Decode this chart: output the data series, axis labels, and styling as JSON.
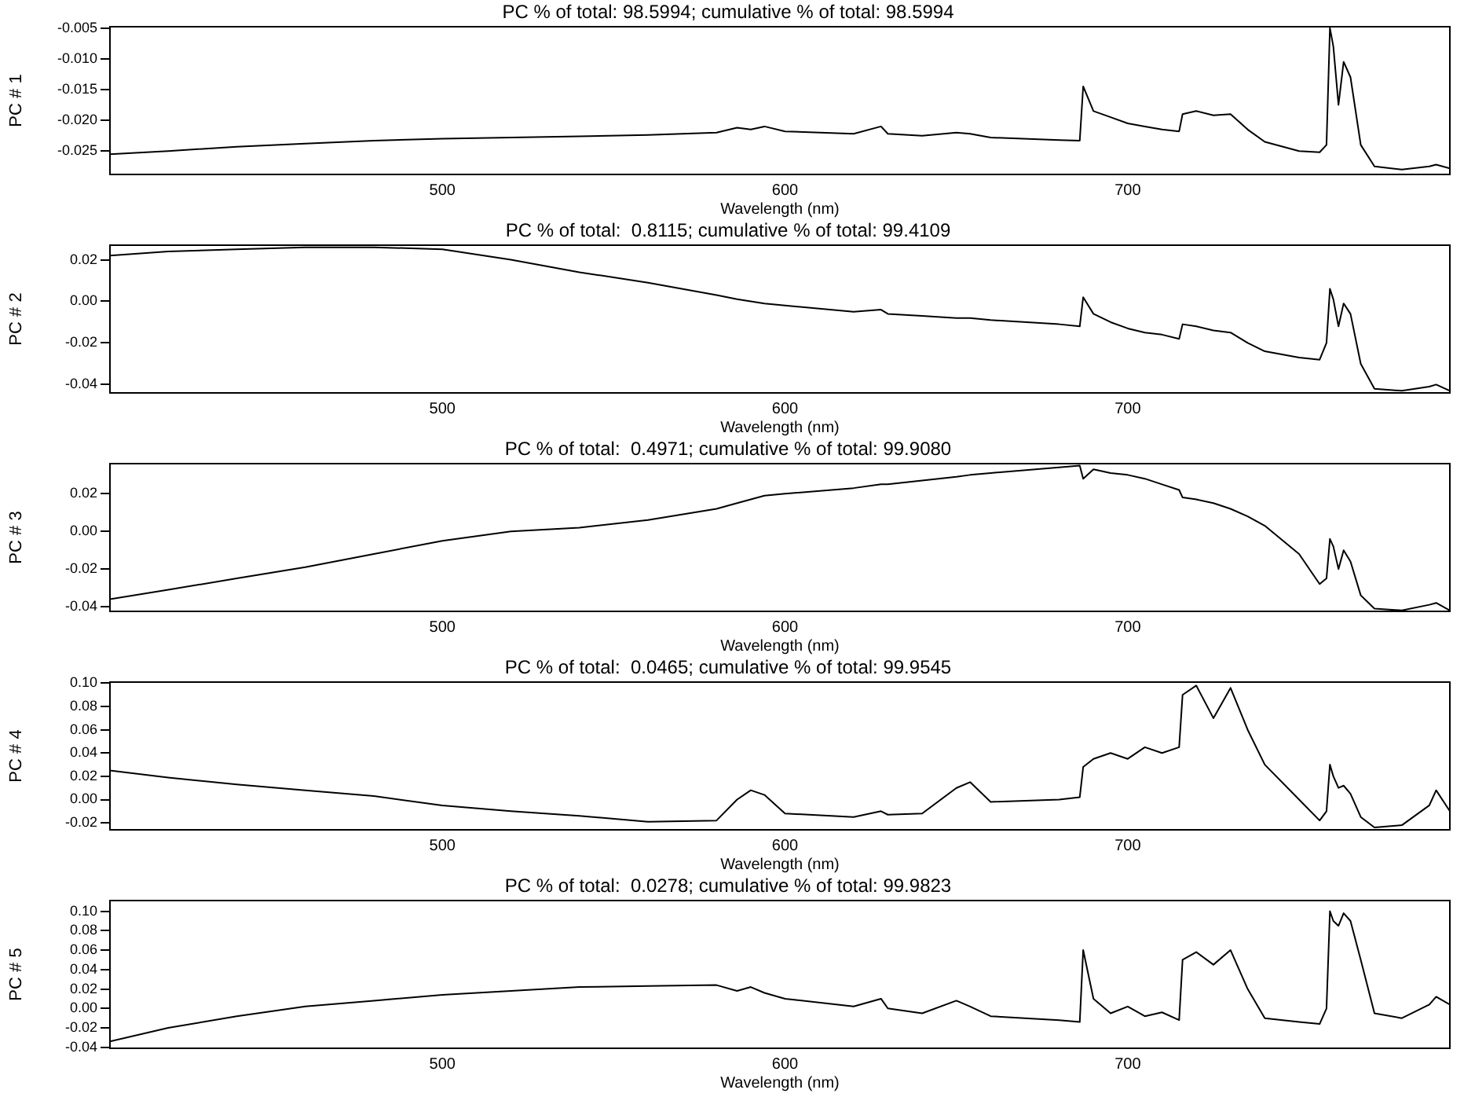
{
  "chart_data": [
    {
      "type": "line",
      "title": "PC % of total: 98.5994; cumulative % of total: 98.5994",
      "xlabel": "Wavelength (nm)",
      "ylabel": "PC # 1",
      "color": "#000000",
      "x": [
        403,
        420,
        440,
        460,
        480,
        500,
        520,
        540,
        560,
        580,
        586,
        590,
        594,
        600,
        620,
        628,
        630,
        640,
        650,
        654,
        660,
        680,
        686,
        687,
        690,
        695,
        700,
        705,
        710,
        715,
        716,
        720,
        725,
        730,
        735,
        740,
        750,
        756,
        758,
        759,
        760,
        761.5,
        763,
        765,
        768,
        772,
        780,
        788,
        790,
        794
      ],
      "values": [
        -0.0255,
        -0.025,
        -0.0243,
        -0.0238,
        -0.0233,
        -0.023,
        -0.0228,
        -0.0226,
        -0.0224,
        -0.022,
        -0.0212,
        -0.0215,
        -0.021,
        -0.0218,
        -0.0222,
        -0.021,
        -0.0222,
        -0.0225,
        -0.022,
        -0.0222,
        -0.0228,
        -0.0232,
        -0.0233,
        -0.0145,
        -0.0185,
        -0.0195,
        -0.0205,
        -0.021,
        -0.0215,
        -0.0218,
        -0.019,
        -0.0185,
        -0.0192,
        -0.019,
        -0.0215,
        -0.0235,
        -0.025,
        -0.0252,
        -0.024,
        -0.005,
        -0.008,
        -0.0175,
        -0.0105,
        -0.013,
        -0.024,
        -0.0275,
        -0.028,
        -0.0275,
        -0.0272,
        -0.0278
      ],
      "xlim": [
        403,
        794
      ],
      "xticks": [
        500,
        600,
        700
      ],
      "ylim": [
        -0.0288,
        -0.0048
      ],
      "yticks": [
        {
          "value": -0.025,
          "label": "-0.025"
        },
        {
          "value": -0.02,
          "label": "-0.020"
        },
        {
          "value": -0.015,
          "label": "-0.015"
        },
        {
          "value": -0.01,
          "label": "-0.010"
        },
        {
          "value": -0.005,
          "label": "-0.005"
        }
      ]
    },
    {
      "type": "line",
      "title": "PC % of total:  0.8115; cumulative % of total: 99.4109",
      "xlabel": "Wavelength (nm)",
      "ylabel": "PC # 2",
      "color": "#000000",
      "x": [
        403,
        420,
        440,
        460,
        480,
        500,
        520,
        540,
        560,
        580,
        586,
        590,
        594,
        600,
        620,
        628,
        630,
        640,
        650,
        654,
        660,
        680,
        686,
        687,
        690,
        695,
        700,
        705,
        710,
        715,
        716,
        720,
        725,
        730,
        735,
        740,
        750,
        756,
        758,
        759,
        760,
        761.5,
        763,
        765,
        768,
        772,
        780,
        788,
        790,
        794
      ],
      "values": [
        0.022,
        0.024,
        0.025,
        0.026,
        0.026,
        0.025,
        0.02,
        0.014,
        0.009,
        0.003,
        0.001,
        0.0,
        -0.001,
        -0.002,
        -0.005,
        -0.004,
        -0.006,
        -0.007,
        -0.008,
        -0.008,
        -0.009,
        -0.011,
        -0.012,
        0.002,
        -0.006,
        -0.01,
        -0.013,
        -0.015,
        -0.016,
        -0.018,
        -0.011,
        -0.012,
        -0.014,
        -0.015,
        -0.02,
        -0.024,
        -0.027,
        -0.028,
        -0.02,
        0.006,
        0.001,
        -0.012,
        -0.001,
        -0.006,
        -0.03,
        -0.042,
        -0.043,
        -0.041,
        -0.04,
        -0.043
      ],
      "xlim": [
        403,
        794
      ],
      "xticks": [
        500,
        600,
        700
      ],
      "ylim": [
        -0.044,
        0.027
      ],
      "yticks": [
        {
          "value": -0.04,
          "label": "-0.04"
        },
        {
          "value": -0.02,
          "label": "-0.02"
        },
        {
          "value": 0,
          "label": "0.00"
        },
        {
          "value": 0.02,
          "label": "0.02"
        }
      ]
    },
    {
      "type": "line",
      "title": "PC % of total:  0.4971; cumulative % of total: 99.9080",
      "xlabel": "Wavelength (nm)",
      "ylabel": "PC # 3",
      "color": "#000000",
      "x": [
        403,
        420,
        440,
        460,
        480,
        500,
        520,
        540,
        560,
        580,
        586,
        590,
        594,
        600,
        620,
        628,
        630,
        640,
        650,
        654,
        660,
        680,
        686,
        687,
        690,
        695,
        700,
        705,
        710,
        715,
        716,
        720,
        725,
        730,
        735,
        740,
        750,
        756,
        758,
        759,
        760,
        761.5,
        763,
        765,
        768,
        772,
        780,
        788,
        790,
        794
      ],
      "values": [
        -0.036,
        -0.031,
        -0.025,
        -0.019,
        -0.012,
        -0.005,
        0.0,
        0.002,
        0.006,
        0.012,
        0.015,
        0.017,
        0.019,
        0.02,
        0.023,
        0.025,
        0.025,
        0.027,
        0.029,
        0.03,
        0.031,
        0.034,
        0.035,
        0.028,
        0.033,
        0.031,
        0.03,
        0.028,
        0.025,
        0.022,
        0.018,
        0.017,
        0.015,
        0.012,
        0.008,
        0.003,
        -0.012,
        -0.028,
        -0.025,
        -0.004,
        -0.008,
        -0.02,
        -0.01,
        -0.016,
        -0.034,
        -0.041,
        -0.042,
        -0.039,
        -0.038,
        -0.042
      ],
      "xlim": [
        403,
        794
      ],
      "xticks": [
        500,
        600,
        700
      ],
      "ylim": [
        -0.0425,
        0.036
      ],
      "yticks": [
        {
          "value": -0.04,
          "label": "-0.04"
        },
        {
          "value": -0.02,
          "label": "-0.02"
        },
        {
          "value": 0,
          "label": "0.00"
        },
        {
          "value": 0.02,
          "label": "0.02"
        }
      ]
    },
    {
      "type": "line",
      "title": "PC % of total:  0.0465; cumulative % of total: 99.9545",
      "xlabel": "Wavelength (nm)",
      "ylabel": "PC # 4",
      "color": "#000000",
      "x": [
        403,
        420,
        440,
        460,
        480,
        500,
        520,
        540,
        560,
        580,
        586,
        590,
        594,
        600,
        620,
        628,
        630,
        640,
        650,
        654,
        660,
        680,
        686,
        687,
        690,
        695,
        700,
        705,
        710,
        715,
        716,
        720,
        725,
        730,
        735,
        740,
        750,
        756,
        758,
        759,
        760,
        761.5,
        763,
        765,
        768,
        772,
        780,
        788,
        790,
        794
      ],
      "values": [
        0.025,
        0.019,
        0.013,
        0.008,
        0.003,
        -0.005,
        -0.01,
        -0.014,
        -0.019,
        -0.018,
        0.0,
        0.008,
        0.004,
        -0.012,
        -0.015,
        -0.01,
        -0.013,
        -0.012,
        0.01,
        0.015,
        -0.002,
        0.0,
        0.002,
        0.028,
        0.035,
        0.04,
        0.035,
        0.045,
        0.04,
        0.045,
        0.09,
        0.098,
        0.07,
        0.096,
        0.06,
        0.03,
        0.0,
        -0.018,
        -0.01,
        0.03,
        0.02,
        0.01,
        0.012,
        0.005,
        -0.015,
        -0.024,
        -0.022,
        -0.005,
        0.008,
        -0.01
      ],
      "xlim": [
        403,
        794
      ],
      "xticks": [
        500,
        600,
        700
      ],
      "ylim": [
        -0.026,
        0.101
      ],
      "yticks": [
        {
          "value": -0.02,
          "label": "-0.02"
        },
        {
          "value": 0,
          "label": "0.00"
        },
        {
          "value": 0.02,
          "label": "0.02"
        },
        {
          "value": 0.04,
          "label": "0.04"
        },
        {
          "value": 0.06,
          "label": "0.06"
        },
        {
          "value": 0.08,
          "label": "0.08"
        },
        {
          "value": 0.1,
          "label": "0.10"
        }
      ]
    },
    {
      "type": "line",
      "title": "PC % of total:  0.0278; cumulative % of total: 99.9823",
      "xlabel": "Wavelength (nm)",
      "ylabel": "PC # 5",
      "color": "#000000",
      "x": [
        403,
        420,
        440,
        460,
        480,
        500,
        520,
        540,
        560,
        580,
        586,
        590,
        594,
        600,
        620,
        628,
        630,
        640,
        650,
        654,
        660,
        680,
        686,
        687,
        690,
        695,
        700,
        705,
        710,
        715,
        716,
        720,
        725,
        730,
        735,
        740,
        750,
        756,
        758,
        759,
        760,
        761.5,
        763,
        765,
        768,
        772,
        780,
        788,
        790,
        794
      ],
      "values": [
        -0.034,
        -0.02,
        -0.008,
        0.002,
        0.008,
        0.014,
        0.018,
        0.022,
        0.023,
        0.024,
        0.018,
        0.022,
        0.016,
        0.01,
        0.002,
        0.01,
        0.0,
        -0.005,
        0.008,
        0.002,
        -0.008,
        -0.012,
        -0.014,
        0.06,
        0.01,
        -0.005,
        0.002,
        -0.008,
        -0.004,
        -0.012,
        0.05,
        0.058,
        0.045,
        0.06,
        0.02,
        -0.01,
        -0.014,
        -0.016,
        0.0,
        0.1,
        0.09,
        0.085,
        0.098,
        0.09,
        0.05,
        -0.005,
        -0.01,
        0.004,
        0.012,
        0.004
      ],
      "xlim": [
        403,
        794
      ],
      "xticks": [
        500,
        600,
        700
      ],
      "ylim": [
        -0.041,
        0.111
      ],
      "yticks": [
        {
          "value": -0.04,
          "label": "-0.04"
        },
        {
          "value": -0.02,
          "label": "-0.02"
        },
        {
          "value": 0,
          "label": "0.00"
        },
        {
          "value": 0.02,
          "label": "0.02"
        },
        {
          "value": 0.04,
          "label": "0.04"
        },
        {
          "value": 0.06,
          "label": "0.06"
        },
        {
          "value": 0.08,
          "label": "0.08"
        },
        {
          "value": 0.1,
          "label": "0.10"
        }
      ]
    }
  ]
}
